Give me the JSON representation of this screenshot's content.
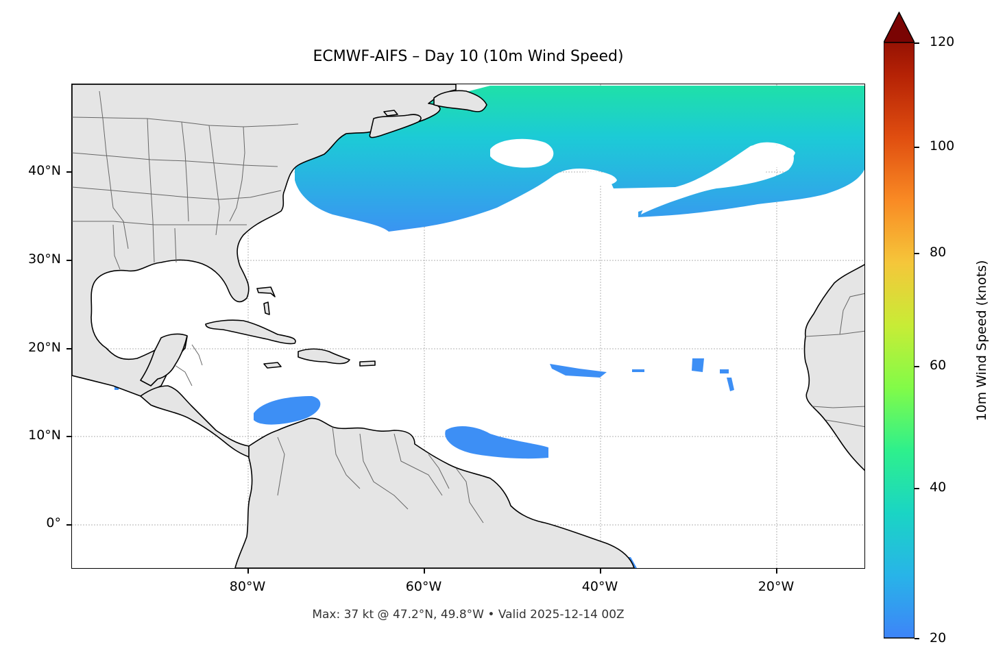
{
  "title": "ECMWF-AIFS – Day 10 (10m Wind Speed)",
  "axes": {
    "lat_labels": [
      "40°N",
      "30°N",
      "20°N",
      "10°N",
      "0°"
    ],
    "lon_labels": [
      "80°W",
      "60°W",
      "40°W",
      "20°W"
    ]
  },
  "footer": "Max: 37 kt @ 47.2°N, 49.8°W • Valid 2025-12-14 00Z",
  "colorbar": {
    "label": "10m Wind Speed (knots)",
    "ticks": [
      "20",
      "40",
      "60",
      "80",
      "100",
      "120"
    ],
    "min": 20,
    "max": 120,
    "extend": "max"
  },
  "colors": {
    "land": "#e5e5e5",
    "coast": "#000000",
    "border": "#666666",
    "wind_low": "#3d8ff5",
    "wind_mid": "#1fc8d8",
    "wind_high": "#1fe6a0"
  }
}
